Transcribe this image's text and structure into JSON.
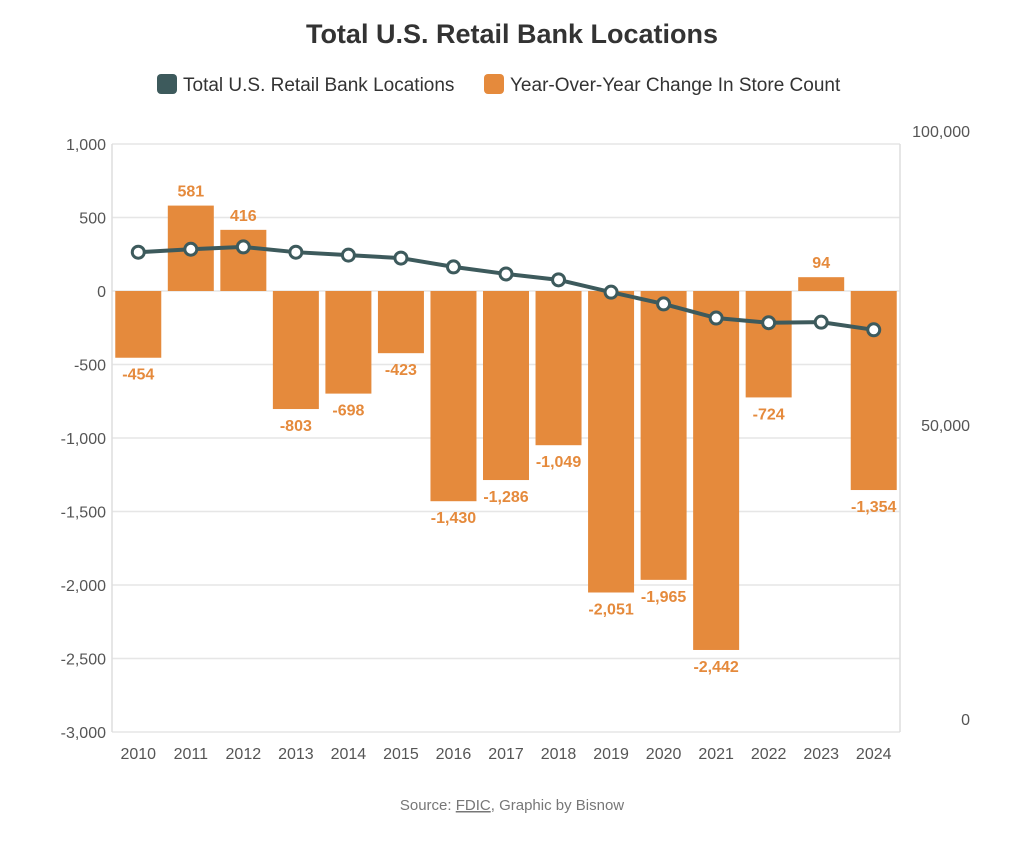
{
  "chart_data": {
    "type": "bar+line",
    "title": "Total U.S. Retail Bank Locations",
    "categories": [
      "2010",
      "2011",
      "2012",
      "2013",
      "2014",
      "2015",
      "2016",
      "2017",
      "2018",
      "2019",
      "2020",
      "2021",
      "2022",
      "2023",
      "2024"
    ],
    "series": [
      {
        "name": "Total U.S. Retail Bank Locations",
        "type": "line",
        "axis": "right",
        "color": "#3d5a5c",
        "values": [
          81600,
          82100,
          82500,
          81600,
          81100,
          80600,
          79100,
          77900,
          76900,
          74800,
          72800,
          70400,
          69600,
          69700,
          68400
        ]
      },
      {
        "name": "Year-Over-Year Change In Store Count",
        "type": "bar",
        "axis": "left",
        "color": "#e58a3c",
        "values": [
          -454,
          581,
          416,
          -803,
          -698,
          -423,
          -1430,
          -1286,
          -1049,
          -2051,
          -1965,
          -2442,
          -724,
          94,
          -1354
        ],
        "labels": [
          "-454",
          "581",
          "416",
          "-803",
          "-698",
          "-423",
          "-1,430",
          "-1,286",
          "-1,049",
          "-2,051",
          "-1,965",
          "-2,442",
          "-724",
          "94",
          "-1,354"
        ]
      }
    ],
    "left_axis": {
      "ylim": [
        -3000,
        1000
      ],
      "ticks": [
        "1,000",
        "500",
        "0",
        "-500",
        "-1,000",
        "-1,500",
        "-2,000",
        "-2,500",
        "-3,000"
      ]
    },
    "right_axis": {
      "ylim": [
        0,
        100000
      ],
      "ticks": [
        "100,000",
        "50,000",
        "0"
      ]
    },
    "grid": true,
    "legend": "top"
  },
  "source": {
    "prefix": "Source: ",
    "link": "FDIC",
    "suffix": ", Graphic by Bisnow"
  }
}
